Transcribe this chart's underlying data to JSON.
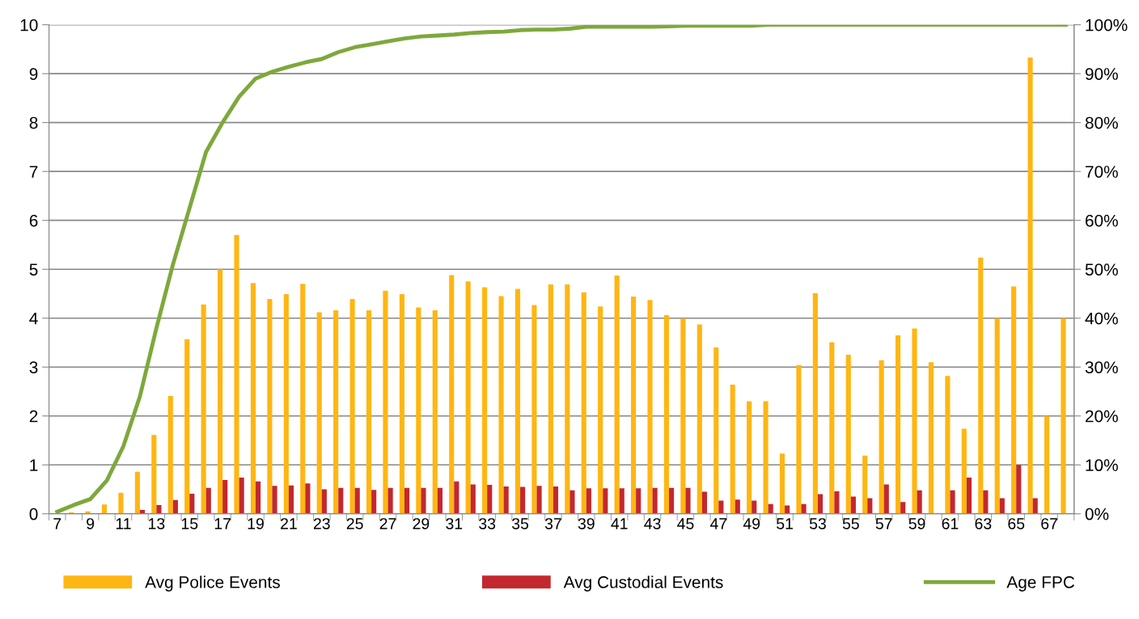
{
  "chart_data": {
    "type": "bar",
    "categories": [
      "7",
      null,
      "9",
      null,
      "11",
      null,
      "13",
      null,
      "15",
      null,
      "17",
      null,
      "19",
      null,
      "21",
      null,
      "23",
      null,
      "25",
      null,
      "27",
      null,
      "29",
      null,
      "31",
      null,
      "33",
      null,
      "35",
      null,
      "37",
      null,
      "39",
      null,
      "41",
      null,
      "43",
      null,
      "45",
      null,
      "47",
      null,
      "49",
      null,
      "51",
      null,
      "53",
      null,
      "55",
      null,
      "57",
      null,
      "59",
      null,
      "61",
      null,
      "63",
      null,
      "65",
      null,
      "67",
      null
    ],
    "series": [
      {
        "name": "Avg Police Events",
        "color": "#ffb612",
        "values": [
          0,
          0.03,
          0.05,
          0.19,
          0.43,
          0.86,
          1.61,
          2.41,
          3.57,
          4.28,
          5.0,
          5.7,
          4.72,
          4.39,
          4.49,
          4.7,
          4.12,
          4.16,
          4.39,
          4.16,
          4.56,
          4.49,
          4.22,
          4.16,
          4.88,
          4.75,
          4.63,
          4.45,
          4.6,
          4.27,
          4.69,
          4.69,
          4.53,
          4.24,
          4.87,
          4.44,
          4.37,
          4.06,
          3.99,
          3.87,
          3.4,
          2.64,
          2.3,
          2.3,
          1.23,
          3.04,
          4.51,
          3.51,
          3.25,
          1.19,
          3.14,
          3.65,
          3.79,
          3.1,
          2.82,
          1.74,
          5.24,
          4.0,
          4.65,
          9.33,
          2.0,
          4.0
        ]
      },
      {
        "name": "Avg Custodial Events",
        "color": "#c3282e",
        "values": [
          0,
          0,
          0,
          0,
          0.01,
          0.08,
          0.18,
          0.28,
          0.41,
          0.53,
          0.69,
          0.74,
          0.66,
          0.57,
          0.58,
          0.62,
          0.5,
          0.53,
          0.53,
          0.49,
          0.53,
          0.53,
          0.53,
          0.53,
          0.66,
          0.6,
          0.59,
          0.56,
          0.55,
          0.57,
          0.56,
          0.48,
          0.52,
          0.52,
          0.52,
          0.52,
          0.53,
          0.53,
          0.53,
          0.45,
          0.27,
          0.29,
          0.27,
          0.2,
          0.17,
          0.2,
          0.4,
          0.46,
          0.35,
          0.32,
          0.6,
          0.24,
          0.48,
          0,
          0.48,
          0.74,
          0.48,
          0.32,
          1.0,
          0.32,
          0,
          0
        ]
      },
      {
        "name": "Age FPC",
        "type": "line",
        "axis": "y2",
        "color": "#7ea83c",
        "values": [
          0.4,
          1.8,
          3,
          6.8,
          13.8,
          24,
          38,
          51,
          62.5,
          74,
          80,
          85.3,
          89,
          90.4,
          91.4,
          92.3,
          93,
          94.4,
          95.4,
          96,
          96.6,
          97.2,
          97.6,
          97.8,
          98,
          98.3,
          98.5,
          98.6,
          98.9,
          99,
          99,
          99.2,
          99.6,
          99.6,
          99.6,
          99.6,
          99.6,
          99.7,
          99.8,
          99.8,
          99.8,
          99.8,
          99.8,
          100,
          100,
          100,
          100,
          100,
          100,
          100,
          100,
          100,
          100,
          100,
          100,
          100,
          100,
          100,
          100,
          100,
          100,
          100
        ]
      }
    ],
    "ylim": [
      0,
      10
    ],
    "yticks": [
      0,
      1,
      2,
      3,
      4,
      5,
      6,
      7,
      8,
      9,
      10
    ],
    "y2lim": [
      0,
      100
    ],
    "y2ticks": [
      {
        "value": 0,
        "label": "0%"
      },
      {
        "value": 10,
        "label": "10%"
      },
      {
        "value": 20,
        "label": "20%"
      },
      {
        "value": 30,
        "label": "30%"
      },
      {
        "value": 40,
        "label": "40%"
      },
      {
        "value": 50,
        "label": "50%"
      },
      {
        "value": 60,
        "label": "60%"
      },
      {
        "value": 70,
        "label": "70%"
      },
      {
        "value": 80,
        "label": "80%"
      },
      {
        "value": 90,
        "label": "90%"
      },
      {
        "value": 100,
        "label": "100%"
      }
    ],
    "grid": "y",
    "legend": "bottom",
    "marker": "none",
    "line_style": "solid"
  }
}
